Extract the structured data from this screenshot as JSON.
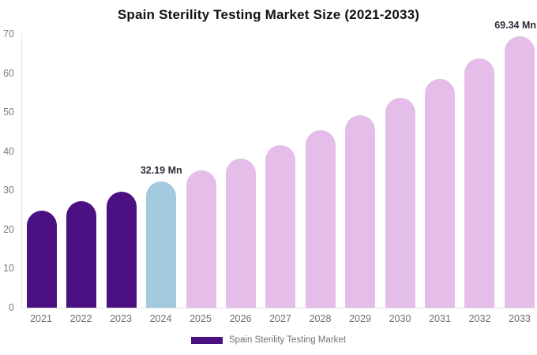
{
  "title": "Spain Sterility Testing Market Size (2021-2033)",
  "legend": {
    "label": "Spain Sterility Testing Market",
    "swatch_color": "#4B1182"
  },
  "colors": {
    "historical_bar": "#4B1182",
    "base_year_bar": "#A3C9DF",
    "forecast_bar": "#E4BDE9",
    "axis_line": "#E2E2E2",
    "tick_text": "#7D7D7D",
    "x_tick_text": "#6E6E6E",
    "title_text": "#121212",
    "annotation_text": "#2D2D3A",
    "background": "#FFFFFF"
  },
  "chart_data": {
    "type": "bar",
    "title": "Spain Sterility Testing Market Size (2021-2033)",
    "series_name": "Spain Sterility Testing Market",
    "categories": [
      "2021",
      "2022",
      "2023",
      "2024",
      "2025",
      "2026",
      "2027",
      "2028",
      "2029",
      "2030",
      "2031",
      "2032",
      "2033"
    ],
    "values": [
      24.9,
      27.2,
      29.6,
      32.19,
      35.1,
      38.2,
      41.6,
      45.3,
      49.3,
      53.7,
      58.5,
      63.7,
      69.34
    ],
    "unit": "Mn",
    "bar_colors": [
      "#4B1182",
      "#4B1182",
      "#4B1182",
      "#A3C9DF",
      "#E4BDE9",
      "#E4BDE9",
      "#E4BDE9",
      "#E4BDE9",
      "#E4BDE9",
      "#E4BDE9",
      "#E4BDE9",
      "#E4BDE9",
      "#E4BDE9"
    ],
    "annotations": [
      {
        "category": "2024",
        "text": "32.19 Mn"
      },
      {
        "category": "2033",
        "text": "69.34 Mn"
      }
    ],
    "xlabel": "",
    "ylabel": "",
    "yticks": [
      0,
      10,
      20,
      30,
      40,
      50,
      60,
      70
    ],
    "ylim": [
      0,
      70
    ],
    "grid": false,
    "legend_position": "bottom"
  }
}
